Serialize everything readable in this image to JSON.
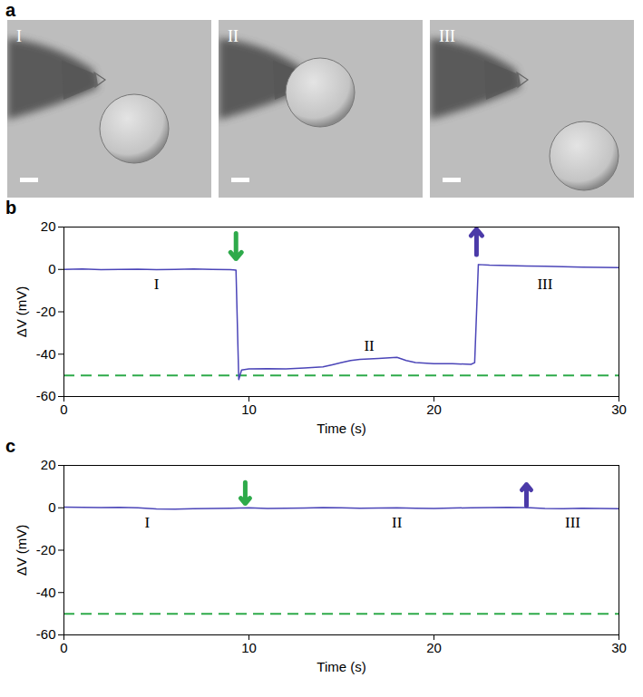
{
  "panel_a": {
    "letter": "a",
    "images": [
      {
        "label": "I"
      },
      {
        "label": "II"
      },
      {
        "label": "III"
      }
    ]
  },
  "chart_data": [
    {
      "type": "line",
      "letter": "b",
      "x_label": "Time (s)",
      "y_label": "ΔV (mV)",
      "xlim": [
        0,
        30
      ],
      "xticks": [
        0,
        10,
        20,
        30
      ],
      "ylim": [
        -60,
        20
      ],
      "yticks": [
        -60,
        -40,
        -20,
        0,
        20
      ],
      "grid": false,
      "x": [
        0,
        1,
        2,
        3,
        4,
        5,
        6,
        7,
        8,
        9,
        9.3,
        9.45,
        9.6,
        10,
        11,
        12,
        13,
        14,
        14.5,
        15,
        15.5,
        16,
        17,
        18,
        18.5,
        19,
        20,
        21,
        22,
        22.2,
        22.4,
        23,
        24,
        25,
        26,
        27,
        28,
        29,
        30
      ],
      "series": [
        {
          "color": "#4b45b8",
          "values": [
            0,
            0.2,
            -0.1,
            0,
            0.1,
            -0.1,
            0,
            0.2,
            0,
            -0.1,
            -0.3,
            -52,
            -47.5,
            -47,
            -46.8,
            -47,
            -46.5,
            -46,
            -45,
            -44,
            -43,
            -42.5,
            -42,
            -41.5,
            -43,
            -44,
            -44.5,
            -44.5,
            -44.8,
            -44,
            2.3,
            2,
            1.8,
            1.6,
            1.5,
            1.3,
            1.1,
            1,
            0.9
          ]
        }
      ],
      "reference_lines": [
        {
          "y": -50,
          "color": "#2eaa4a",
          "line_style": "dashed"
        }
      ],
      "arrows": [
        {
          "x": 9.3,
          "y1": 17,
          "y2": 5,
          "color": "#2eaa4a"
        },
        {
          "x": 22.3,
          "y1": 7,
          "y2": 19,
          "color": "#4b3aa8"
        }
      ],
      "annotations": [
        {
          "text": "I",
          "x": 5,
          "y": -7
        },
        {
          "text": "II",
          "x": 16.5,
          "y": -36
        },
        {
          "text": "III",
          "x": 26,
          "y": -7
        }
      ]
    },
    {
      "type": "line",
      "letter": "c",
      "x_label": "Time (s)",
      "y_label": "ΔV (mV)",
      "xlim": [
        0,
        30
      ],
      "xticks": [
        0,
        10,
        20,
        30
      ],
      "ylim": [
        -60,
        20
      ],
      "yticks": [
        -60,
        -40,
        -20,
        0,
        20
      ],
      "grid": false,
      "x": [
        0,
        1,
        2,
        3,
        4,
        5,
        6,
        7,
        8,
        9,
        10,
        11,
        12,
        13,
        14,
        15,
        16,
        17,
        18,
        19,
        20,
        21,
        22,
        23,
        24,
        25,
        26,
        27,
        28,
        29,
        30
      ],
      "series": [
        {
          "color": "#4b45b8",
          "values": [
            0.3,
            0.2,
            0.1,
            0.2,
            0,
            -0.5,
            -0.6,
            -0.4,
            -0.3,
            -0.2,
            0,
            -0.3,
            -0.2,
            -0.1,
            0.1,
            0,
            -0.2,
            -0.1,
            0,
            -0.2,
            -0.3,
            -0.1,
            0,
            0.1,
            0.2,
            0.1,
            -0.3,
            -0.4,
            -0.2,
            -0.3,
            -0.4
          ]
        }
      ],
      "reference_lines": [
        {
          "y": -50,
          "color": "#2eaa4a",
          "line_style": "dashed"
        }
      ],
      "arrows": [
        {
          "x": 9.8,
          "y1": 12,
          "y2": 2,
          "color": "#2eaa4a"
        },
        {
          "x": 25,
          "y1": 1,
          "y2": 11,
          "color": "#4b3aa8"
        }
      ],
      "annotations": [
        {
          "text": "I",
          "x": 4.5,
          "y": -7
        },
        {
          "text": "II",
          "x": 18,
          "y": -7
        },
        {
          "text": "III",
          "x": 27.5,
          "y": -7
        }
      ]
    }
  ]
}
